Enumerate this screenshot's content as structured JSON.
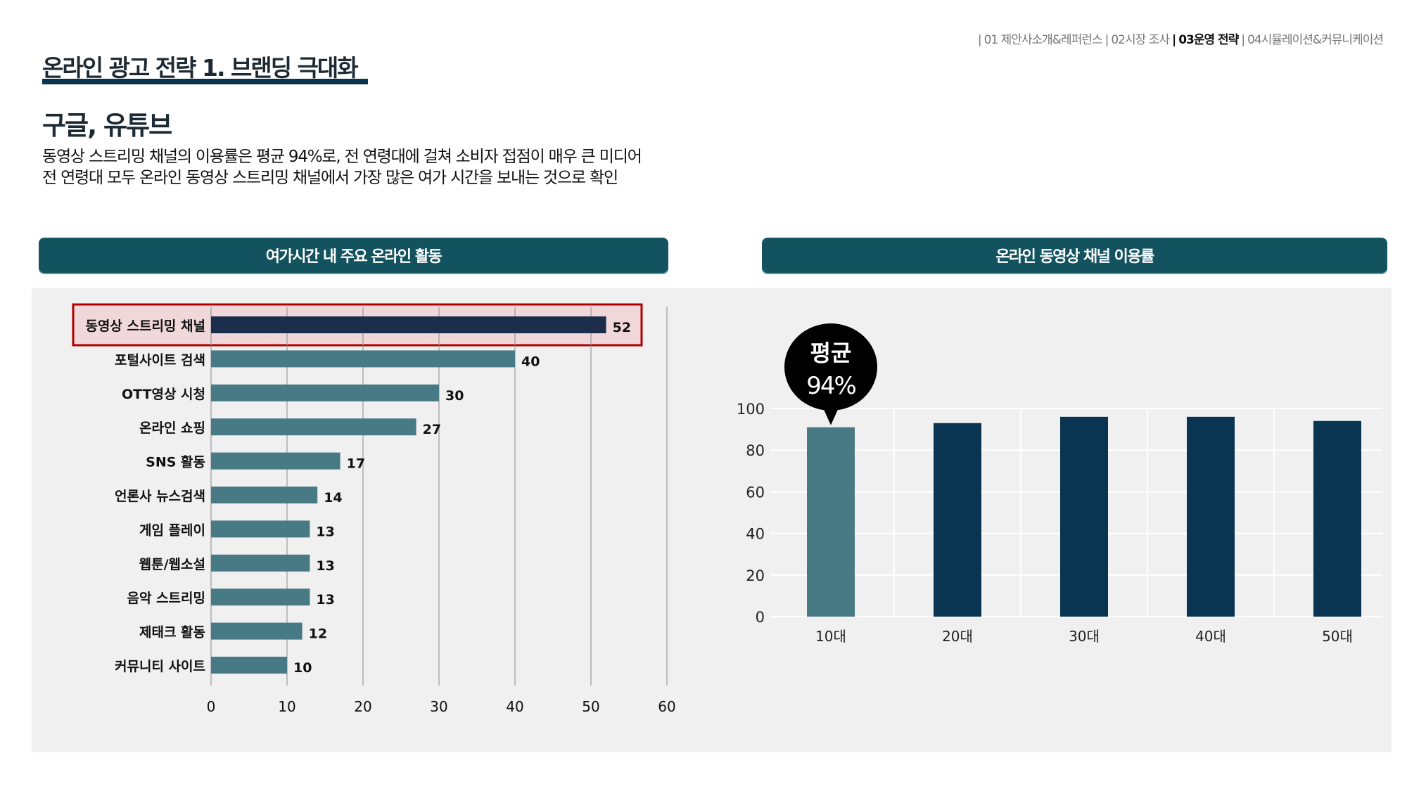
{
  "nav": {
    "items": [
      {
        "label": "01 제안사소개&레퍼런스",
        "active": false
      },
      {
        "label": "02시장 조사",
        "active": false
      },
      {
        "label": "03운영 전략",
        "active": true
      },
      {
        "label": "04시뮬레이션&커뮤니케이션",
        "active": false
      }
    ],
    "separator": "|"
  },
  "header": {
    "title": "온라인 광고 전략 1. 브랜딩 극대화",
    "subtitle": "구글, 유튜브",
    "description": [
      "동영상 스트리밍 채널의 이용률은 평균 94%로, 전 연령대에 걸쳐 소비자 접점이 매우 큰 미디어",
      "전 연령대 모두 온라인 동영상 스트리밍 채널에서 가장 많은 여가 시간을 보내는 것으로 확인"
    ]
  },
  "colors": {
    "header_bar": "#12535f",
    "title_underline": "#0a3350",
    "bar_teal": "#477a84",
    "bar_highlight": "#1b2d4a",
    "bar_navy": "#093452",
    "highlight_box": "#b00000",
    "highlight_fill": "#f0d8da",
    "panel_bg": "#f0f0f0"
  },
  "chart_data": [
    {
      "type": "bar",
      "orientation": "horizontal",
      "title": "여가시간 내 주요 온라인 활동",
      "categories": [
        "동영상 스트리밍 채널",
        "포털사이트 검색",
        "OTT영상 시청",
        "온라인 쇼핑",
        "SNS 활동",
        "언론사 뉴스검색",
        "게임 플레이",
        "웹툰/웹소설",
        "음악 스트리밍",
        "제태크 활동",
        "커뮤니티 사이트"
      ],
      "values": [
        52,
        40,
        30,
        27,
        17,
        14,
        13,
        13,
        13,
        12,
        10
      ],
      "data_labels": [
        "52",
        "40",
        "30",
        "27",
        "17",
        "14",
        "13",
        "13",
        "13",
        "12",
        "10"
      ],
      "highlighted_category": "동영상 스트리밍 채널",
      "xlim": [
        0,
        60
      ],
      "xticks": [
        "0",
        "10",
        "20",
        "30",
        "40",
        "50",
        "60"
      ],
      "xlabel": "",
      "ylabel": "",
      "grid": true
    },
    {
      "type": "bar",
      "orientation": "vertical",
      "title": "온라인 동영상 채널 이용률",
      "categories": [
        "10대",
        "20대",
        "30대",
        "40대",
        "50대"
      ],
      "values": [
        91,
        93,
        96,
        96,
        94
      ],
      "ylim": [
        0,
        100
      ],
      "yticks": [
        "0",
        "20",
        "40",
        "60",
        "80",
        "100"
      ],
      "annotation": {
        "line1": "평균",
        "line2": "94%",
        "target": "10대"
      },
      "xlabel": "",
      "ylabel": "",
      "grid": true
    }
  ]
}
